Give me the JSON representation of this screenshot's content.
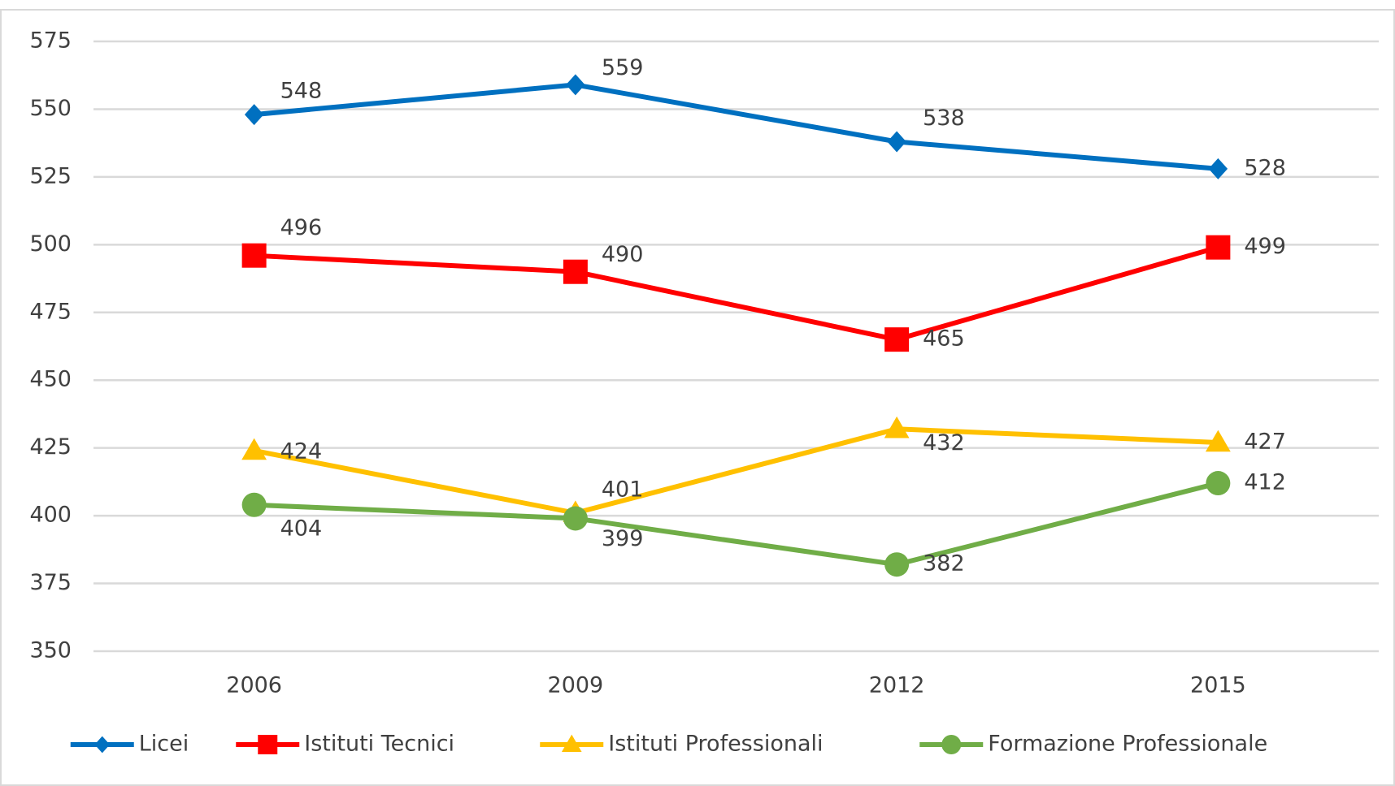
{
  "chart_data": {
    "type": "line",
    "categories": [
      "2006",
      "2009",
      "2012",
      "2015"
    ],
    "series": [
      {
        "name": "Licei",
        "color": "#0070c0",
        "marker": "diamond",
        "values": [
          548,
          559,
          538,
          528
        ]
      },
      {
        "name": "Istituti Tecnici",
        "color": "#ff0000",
        "marker": "square",
        "values": [
          496,
          490,
          465,
          499
        ]
      },
      {
        "name": "Istituti Professionali",
        "color": "#ffc000",
        "marker": "triangle",
        "values": [
          424,
          401,
          432,
          427
        ]
      },
      {
        "name": "Formazione Professionale",
        "color": "#70ad47",
        "marker": "circle",
        "values": [
          404,
          399,
          382,
          412
        ]
      }
    ],
    "ylim": [
      350,
      575
    ],
    "yticks": [
      350,
      375,
      400,
      425,
      450,
      475,
      500,
      525,
      550,
      575
    ],
    "grid": true,
    "legend": "bottom"
  }
}
